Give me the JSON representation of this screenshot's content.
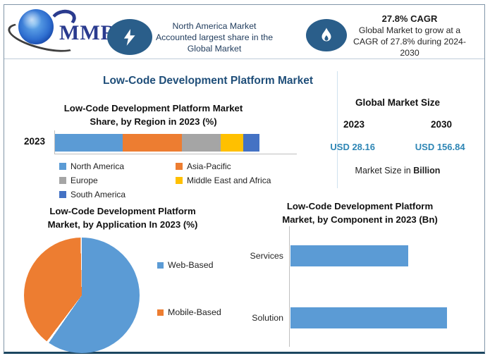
{
  "header": {
    "logo": {
      "text": "MMR"
    },
    "highlight_left": {
      "icon": "lightning-bolt-icon",
      "lines": [
        "North America Market",
        "Accounted largest share in the",
        "Global Market"
      ]
    },
    "highlight_right": {
      "icon": "flame-icon",
      "headline": "27.8% CAGR",
      "lines": [
        "Global Market to grow at a",
        "CAGR of 27.8% during 2024-",
        "2030"
      ]
    }
  },
  "main_title": "Low-Code Development Platform Market",
  "market_size_panel": {
    "title": "Global Market Size",
    "year_left": "2023",
    "year_right": "2030",
    "value_left": "USD 28.16",
    "value_right": "USD 156.84",
    "note_prefix": "Market Size in",
    "note_bold": "Billion"
  },
  "colors": {
    "series_blue": "#5B9BD5",
    "series_orange": "#ED7D31",
    "series_gray": "#A5A5A5",
    "series_yellow": "#FFC000",
    "series_navy": "#4472C4",
    "title_blue": "#1F4E79",
    "value_teal": "#2E86B5",
    "icon_ellipse_blue": "#2A5E8A",
    "frame_bottom": "#1C4660"
  },
  "chart_data": [
    {
      "type": "bar",
      "orientation": "horizontal-stacked",
      "title": "Low-Code Development Platform Market Share, by Region in 2023 (%)",
      "title_lines": [
        "Low-Code Development Platform Market",
        "Share, by Region in 2023 (%)"
      ],
      "categories": [
        "2023"
      ],
      "series": [
        {
          "name": "North America",
          "values": [
            33
          ],
          "color": "#5B9BD5"
        },
        {
          "name": "Asia-Pacific",
          "values": [
            29
          ],
          "color": "#ED7D31"
        },
        {
          "name": "Europe",
          "values": [
            19
          ],
          "color": "#A5A5A5"
        },
        {
          "name": "Middle East and Africa",
          "values": [
            11
          ],
          "color": "#FFC000"
        },
        {
          "name": "South America",
          "values": [
            8
          ],
          "color": "#4472C4"
        }
      ],
      "legend_position": "bottom",
      "note": "segment shares estimated from bar widths; no data labels shown"
    },
    {
      "type": "pie",
      "title": "Low-Code Development Platform Market, by Application In 2023 (%)",
      "title_lines": [
        "Low-Code Development Platform",
        "Market, by Application In 2023 (%)"
      ],
      "labels": [
        "Web-Based",
        "Mobile-Based"
      ],
      "values": [
        60,
        40
      ],
      "colors": [
        "#5B9BD5",
        "#ED7D31"
      ],
      "start_angle_deg": 0,
      "legend_position": "right",
      "note": "slice shares estimated from angles; no data labels shown"
    },
    {
      "type": "bar",
      "orientation": "horizontal",
      "title": "Low-Code Development Platform Market, by Component in 2023 (Bn)",
      "title_lines": [
        "Low-Code Development Platform",
        "Market, by Component in 2023 (Bn)"
      ],
      "categories": [
        "Services",
        "Solution"
      ],
      "values": [
        75,
        100
      ],
      "bar_color": "#5B9BD5",
      "note": "relative bar lengths; axis values not shown"
    }
  ]
}
